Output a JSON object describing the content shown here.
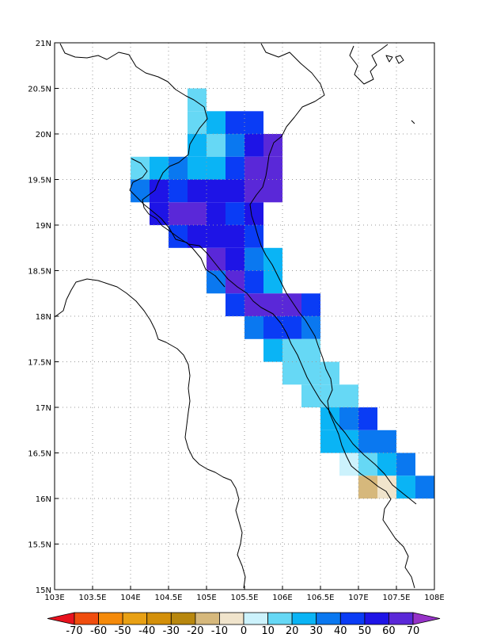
{
  "map": {
    "lon_range": [
      103,
      108
    ],
    "lat_range": [
      15,
      21
    ],
    "lon_ticks": [
      "103E",
      "103.5E",
      "104E",
      "104.5E",
      "105E",
      "105.5E",
      "106E",
      "106.5E",
      "107E",
      "107.5E",
      "108E"
    ],
    "lat_ticks": [
      "15N",
      "15.5N",
      "16N",
      "16.5N",
      "17N",
      "17.5N",
      "18N",
      "18.5N",
      "19N",
      "19.5N",
      "20N",
      "20.5N",
      "21N"
    ],
    "grid": "dotted",
    "cell_size_deg": 0.25
  },
  "colorbar": {
    "labels": [
      "-70",
      "-60",
      "-50",
      "-40",
      "-30",
      "-20",
      "-10",
      "0",
      "10",
      "20",
      "30",
      "40",
      "50",
      "60",
      "70"
    ],
    "colors": [
      "#e8121e",
      "#f04d0e",
      "#f58a0a",
      "#e8a014",
      "#d4900a",
      "#b8870e",
      "#d6b87c",
      "#f0e4cc",
      "#ccf2fc",
      "#66d8f5",
      "#0ab4f5",
      "#0a78f0",
      "#0a3cf5",
      "#1e14e6",
      "#5a28d8",
      "#9632c8"
    ]
  },
  "grid_cells": [
    [
      104.75,
      20.25,
      2
    ],
    [
      104.75,
      20.0,
      2
    ],
    [
      105.0,
      20.0,
      3
    ],
    [
      105.25,
      20.0,
      5
    ],
    [
      105.5,
      20.0,
      5
    ],
    [
      104.75,
      19.75,
      3
    ],
    [
      105.0,
      19.75,
      2
    ],
    [
      105.25,
      19.75,
      4
    ],
    [
      105.5,
      19.75,
      6
    ],
    [
      105.75,
      19.75,
      7
    ],
    [
      104.0,
      19.5,
      2
    ],
    [
      104.25,
      19.5,
      3
    ],
    [
      104.5,
      19.5,
      4
    ],
    [
      104.75,
      19.5,
      3
    ],
    [
      105.0,
      19.5,
      3
    ],
    [
      105.25,
      19.5,
      5
    ],
    [
      105.5,
      19.5,
      7
    ],
    [
      105.75,
      19.5,
      7
    ],
    [
      104.0,
      19.25,
      4
    ],
    [
      104.25,
      19.25,
      6
    ],
    [
      104.5,
      19.25,
      5
    ],
    [
      104.75,
      19.25,
      6
    ],
    [
      105.0,
      19.25,
      6
    ],
    [
      105.25,
      19.25,
      6
    ],
    [
      105.5,
      19.25,
      7
    ],
    [
      105.75,
      19.25,
      7
    ],
    [
      104.25,
      19.0,
      6
    ],
    [
      104.5,
      19.0,
      7
    ],
    [
      104.75,
      19.0,
      7
    ],
    [
      105.0,
      19.0,
      6
    ],
    [
      105.25,
      19.0,
      5
    ],
    [
      105.5,
      19.0,
      6
    ],
    [
      104.5,
      18.75,
      5
    ],
    [
      104.75,
      18.75,
      6
    ],
    [
      105.0,
      18.75,
      6
    ],
    [
      105.25,
      18.75,
      6
    ],
    [
      105.5,
      18.75,
      5
    ],
    [
      105.0,
      18.5,
      7
    ],
    [
      105.25,
      18.5,
      6
    ],
    [
      105.5,
      18.5,
      4
    ],
    [
      105.75,
      18.5,
      3
    ],
    [
      105.0,
      18.25,
      4
    ],
    [
      105.25,
      18.25,
      7
    ],
    [
      105.5,
      18.25,
      5
    ],
    [
      105.75,
      18.25,
      3
    ],
    [
      105.25,
      18.0,
      5
    ],
    [
      105.5,
      18.0,
      7
    ],
    [
      105.75,
      18.0,
      7
    ],
    [
      106.0,
      18.0,
      7
    ],
    [
      106.25,
      18.0,
      5
    ],
    [
      105.5,
      17.75,
      4
    ],
    [
      105.75,
      17.75,
      5
    ],
    [
      106.0,
      17.75,
      5
    ],
    [
      106.25,
      17.75,
      4
    ],
    [
      105.75,
      17.5,
      3
    ],
    [
      106.0,
      17.5,
      2
    ],
    [
      106.25,
      17.5,
      2
    ],
    [
      106.0,
      17.25,
      2
    ],
    [
      106.25,
      17.25,
      2
    ],
    [
      106.5,
      17.25,
      2
    ],
    [
      106.25,
      17.0,
      2
    ],
    [
      106.5,
      17.0,
      2
    ],
    [
      106.75,
      17.0,
      2
    ],
    [
      106.5,
      16.75,
      3
    ],
    [
      106.75,
      16.75,
      4
    ],
    [
      107.0,
      16.75,
      5
    ],
    [
      106.5,
      16.5,
      3
    ],
    [
      106.75,
      16.5,
      3
    ],
    [
      107.0,
      16.5,
      4
    ],
    [
      107.25,
      16.5,
      4
    ],
    [
      106.75,
      16.25,
      1
    ],
    [
      107.0,
      16.25,
      2
    ],
    [
      107.25,
      16.25,
      3
    ],
    [
      107.5,
      16.25,
      4
    ],
    [
      107.0,
      16.0,
      -1
    ],
    [
      107.25,
      16.0,
      0
    ],
    [
      107.5,
      16.0,
      3
    ],
    [
      107.75,
      16.0,
      4
    ]
  ]
}
